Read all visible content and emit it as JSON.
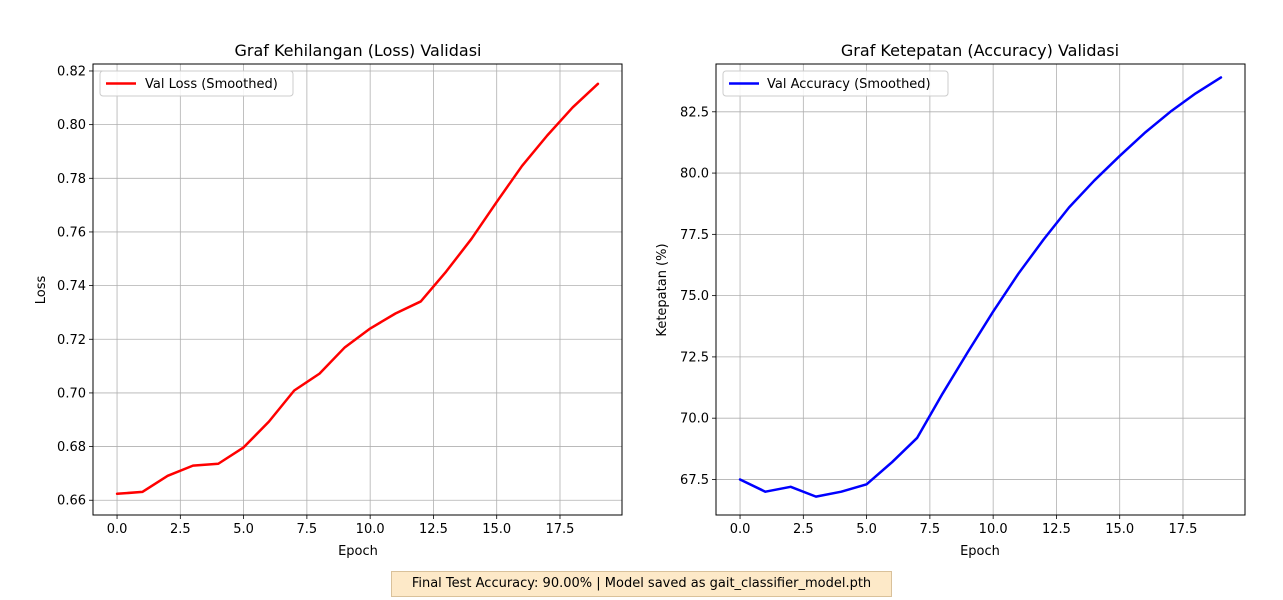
{
  "chart_data": [
    {
      "type": "line",
      "title": "Graf Kehilangan (Loss) Validasi",
      "xlabel": "Epoch",
      "ylabel": "Loss",
      "xlim": [
        -0.95,
        19.95
      ],
      "ylim": [
        0.6545,
        0.8226
      ],
      "xticks": [
        0.0,
        2.5,
        5.0,
        7.5,
        10.0,
        12.5,
        15.0,
        17.5
      ],
      "xtick_labels": [
        "0.0",
        "2.5",
        "5.0",
        "7.5",
        "10.0",
        "12.5",
        "15.0",
        "17.5"
      ],
      "yticks": [
        0.66,
        0.68,
        0.7,
        0.72,
        0.74,
        0.76,
        0.78,
        0.8,
        0.82
      ],
      "ytick_labels": [
        "0.66",
        "0.68",
        "0.70",
        "0.72",
        "0.74",
        "0.76",
        "0.78",
        "0.80",
        "0.82"
      ],
      "grid": true,
      "legend_position": "upper-left",
      "series": [
        {
          "name": "Val Loss (Smoothed)",
          "color": "#ff0000",
          "x": [
            0,
            1,
            2,
            3,
            4,
            5,
            6,
            7,
            8,
            9,
            10,
            11,
            12,
            13,
            14,
            15,
            16,
            17,
            18,
            19
          ],
          "y": [
            0.6624,
            0.6631,
            0.6691,
            0.6729,
            0.6736,
            0.6797,
            0.6893,
            0.7009,
            0.7072,
            0.717,
            0.724,
            0.7296,
            0.7341,
            0.7452,
            0.7574,
            0.7712,
            0.7846,
            0.796,
            0.8064,
            0.8152
          ]
        }
      ]
    },
    {
      "type": "line",
      "title": "Graf Ketepatan (Accuracy) Validasi",
      "xlabel": "Epoch",
      "ylabel": "Ketepatan (%)",
      "xlim": [
        -0.95,
        19.95
      ],
      "ylim": [
        66.05,
        84.45
      ],
      "xticks": [
        0.0,
        2.5,
        5.0,
        7.5,
        10.0,
        12.5,
        15.0,
        17.5
      ],
      "xtick_labels": [
        "0.0",
        "2.5",
        "5.0",
        "7.5",
        "10.0",
        "12.5",
        "15.0",
        "17.5"
      ],
      "yticks": [
        67.5,
        70.0,
        72.5,
        75.0,
        77.5,
        80.0,
        82.5
      ],
      "ytick_labels": [
        "67.5",
        "70.0",
        "72.5",
        "75.0",
        "77.5",
        "80.0",
        "82.5"
      ],
      "grid": true,
      "legend_position": "upper-left",
      "series": [
        {
          "name": "Val Accuracy (Smoothed)",
          "color": "#0000ff",
          "x": [
            0,
            1,
            2,
            3,
            4,
            5,
            6,
            7,
            8,
            9,
            10,
            11,
            12,
            13,
            14,
            15,
            16,
            17,
            18,
            19
          ],
          "y": [
            67.5,
            67.0,
            67.2,
            66.8,
            67.0,
            67.3,
            68.2,
            69.2,
            71.0,
            72.7,
            74.35,
            75.9,
            77.3,
            78.6,
            79.7,
            80.7,
            81.65,
            82.5,
            83.25,
            83.9
          ]
        }
      ]
    }
  ],
  "footer": {
    "text": "Final Test Accuracy: 90.00% | Model saved as gait_classifier_model.pth"
  }
}
